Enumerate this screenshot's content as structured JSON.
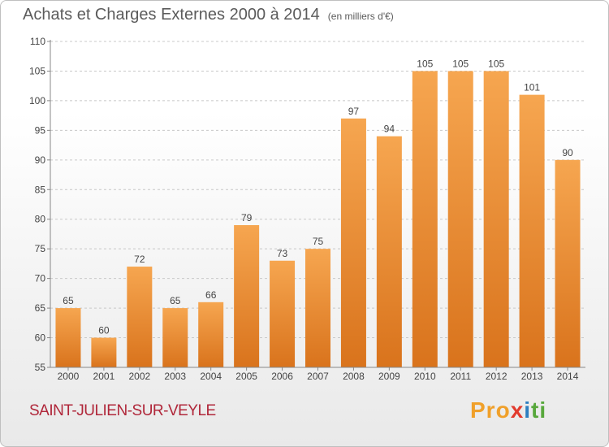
{
  "title": "Achats et Charges Externes 2000 à 2014",
  "unit": "(en milliers d'€)",
  "commune": "SAINT-JULIEN-SUR-VEYLE",
  "logo_text": "Proxiti",
  "colors": {
    "bar_light": "#f6a650",
    "bar_dark": "#d9731c",
    "title": "#5b5b5b",
    "commune": "#b0273a"
  },
  "chart_data": {
    "type": "bar",
    "categories": [
      "2000",
      "2001",
      "2002",
      "2003",
      "2004",
      "2005",
      "2006",
      "2007",
      "2008",
      "2009",
      "2010",
      "2011",
      "2012",
      "2013",
      "2014"
    ],
    "values": [
      65,
      60,
      72,
      65,
      66,
      79,
      73,
      75,
      97,
      94,
      105,
      105,
      105,
      101,
      90
    ],
    "ylim": [
      55,
      110
    ],
    "yticks": [
      55,
      60,
      65,
      70,
      75,
      80,
      85,
      90,
      95,
      100,
      105,
      110
    ],
    "grid": "dashed horizontal",
    "legend": "none"
  }
}
